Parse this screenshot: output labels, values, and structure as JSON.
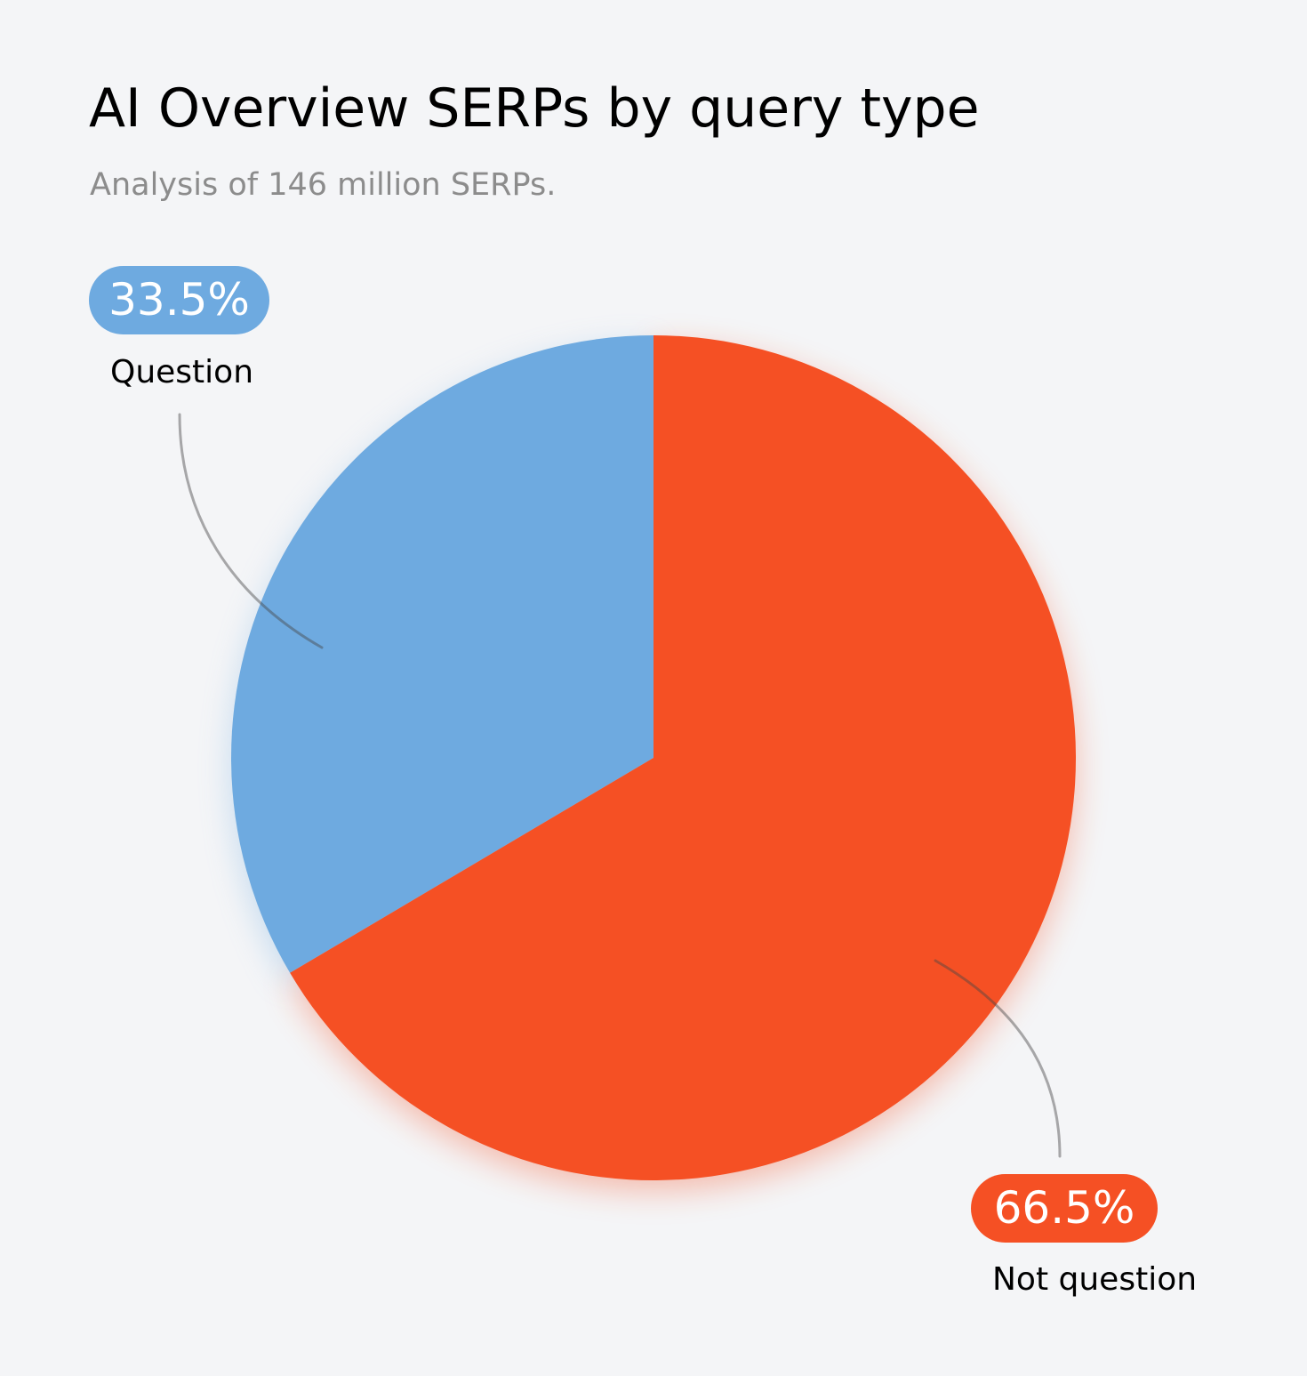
{
  "title": "AI Overview SERPs by query type",
  "subtitle": "Analysis of 146 million SERPs.",
  "chart_data": {
    "type": "pie",
    "slices": [
      {
        "label": "Question",
        "value": 33.5,
        "value_label": "33.5%",
        "color": "#6eaae0"
      },
      {
        "label": "Not question",
        "value": 66.5,
        "value_label": "66.5%",
        "color": "#f55024"
      }
    ],
    "start_angle": "12 o'clock",
    "direction": "counterclockwise for Question, clockwise for Not question"
  }
}
